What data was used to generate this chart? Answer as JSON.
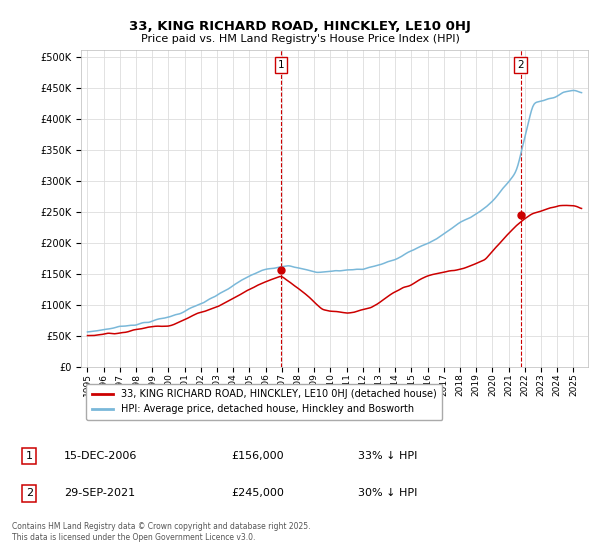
{
  "title": "33, KING RICHARD ROAD, HINCKLEY, LE10 0HJ",
  "subtitle": "Price paid vs. HM Land Registry's House Price Index (HPI)",
  "ylabel_ticks": [
    "£0",
    "£50K",
    "£100K",
    "£150K",
    "£200K",
    "£250K",
    "£300K",
    "£350K",
    "£400K",
    "£450K",
    "£500K"
  ],
  "ytick_values": [
    0,
    50000,
    100000,
    150000,
    200000,
    250000,
    300000,
    350000,
    400000,
    450000,
    500000
  ],
  "ylim": [
    0,
    510000
  ],
  "legend_line1": "33, KING RICHARD ROAD, HINCKLEY, LE10 0HJ (detached house)",
  "legend_line2": "HPI: Average price, detached house, Hinckley and Bosworth",
  "annotation1_date": "15-DEC-2006",
  "annotation1_price": "£156,000",
  "annotation1_hpi": "33% ↓ HPI",
  "annotation2_date": "29-SEP-2021",
  "annotation2_price": "£245,000",
  "annotation2_hpi": "30% ↓ HPI",
  "footer": "Contains HM Land Registry data © Crown copyright and database right 2025.\nThis data is licensed under the Open Government Licence v3.0.",
  "hpi_color": "#7ab8d9",
  "price_color": "#cc0000",
  "background_color": "#ffffff",
  "grid_color": "#dddddd",
  "vline_color": "#cc0000",
  "marker1_x_year": 2006.96,
  "marker2_x_year": 2021.74,
  "marker1_y": 156000,
  "marker2_y": 245000,
  "xlim_left": 1994.6,
  "xlim_right": 2025.9
}
